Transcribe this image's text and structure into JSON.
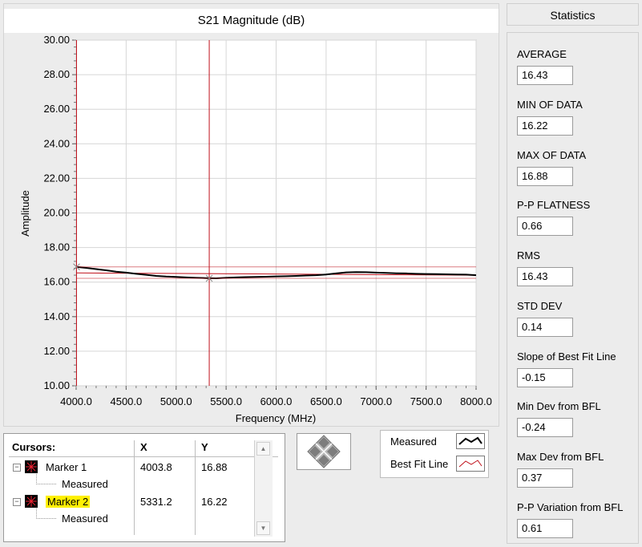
{
  "colors": {
    "measured": "#000000",
    "best_fit": "#c0101a",
    "cursor_line": "#c0101a",
    "grid": "#d6d6d6",
    "highlight": "#fff000"
  },
  "chart_data": {
    "type": "line",
    "title": "S21 Magnitude (dB)",
    "xlabel": "Frequency (MHz)",
    "ylabel": "Amplitude",
    "xlim": [
      4000,
      8000
    ],
    "ylim": [
      10,
      30
    ],
    "x_ticks": [
      "4000.0",
      "4500.0",
      "5000.0",
      "5500.0",
      "6000.0",
      "6500.0",
      "7000.0",
      "7500.0",
      "8000.0"
    ],
    "y_ticks": [
      "10.00",
      "12.00",
      "14.00",
      "16.00",
      "18.00",
      "20.00",
      "22.00",
      "24.00",
      "26.00",
      "28.00",
      "30.00"
    ],
    "x_ticks_values": [
      4000,
      4500,
      5000,
      5500,
      6000,
      6500,
      7000,
      7500,
      8000
    ],
    "y_ticks_values": [
      10,
      12,
      14,
      16,
      18,
      20,
      22,
      24,
      26,
      28,
      30
    ],
    "grid": true,
    "series": [
      {
        "name": "Measured",
        "x": [
          4000,
          4100,
          4200,
          4300,
          4400,
          4500,
          4600,
          4700,
          4800,
          4900,
          5000,
          5100,
          5200,
          5300,
          5400,
          5500,
          5600,
          5700,
          5800,
          5900,
          6000,
          6100,
          6200,
          6300,
          6400,
          6500,
          6600,
          6700,
          6800,
          6900,
          7000,
          7100,
          7200,
          7300,
          7400,
          7500,
          7600,
          7700,
          7800,
          7900,
          8000
        ],
        "y": [
          16.88,
          16.82,
          16.75,
          16.68,
          16.6,
          16.55,
          16.48,
          16.42,
          16.36,
          16.32,
          16.3,
          16.27,
          16.25,
          16.23,
          16.22,
          16.25,
          16.27,
          16.29,
          16.3,
          16.31,
          16.33,
          16.34,
          16.36,
          16.38,
          16.4,
          16.44,
          16.5,
          16.56,
          16.58,
          16.57,
          16.55,
          16.53,
          16.51,
          16.5,
          16.48,
          16.47,
          16.46,
          16.45,
          16.44,
          16.43,
          16.4
        ]
      },
      {
        "name": "Best Fit Line",
        "x": [
          4000,
          8000
        ],
        "y": [
          16.53,
          16.4
        ]
      }
    ],
    "cursors": [
      {
        "name": "Marker 1",
        "x": 4003.8,
        "y": 16.88
      },
      {
        "name": "Marker 2",
        "x": 5331.2,
        "y": 16.22
      }
    ]
  },
  "statistics": {
    "header": "Statistics",
    "items": [
      {
        "label": "AVERAGE",
        "value": "16.43"
      },
      {
        "label": "MIN OF DATA",
        "value": "16.22"
      },
      {
        "label": "MAX OF DATA",
        "value": "16.88"
      },
      {
        "label": "P-P FLATNESS",
        "value": "0.66"
      },
      {
        "label": "RMS",
        "value": "16.43"
      },
      {
        "label": "STD DEV",
        "value": "0.14"
      },
      {
        "label": "Slope of Best Fit Line",
        "value": "-0.15"
      },
      {
        "label": "Min Dev from BFL",
        "value": "-0.24"
      },
      {
        "label": "Max Dev from BFL",
        "value": "0.37"
      },
      {
        "label": "P-P Variation from BFL",
        "value": "0.61"
      }
    ]
  },
  "cursor_table": {
    "headers": {
      "name": "Cursors:",
      "x": "X",
      "y": "Y"
    },
    "rows": [
      {
        "marker": "Marker 1",
        "plot": "Measured",
        "x": "4003.8",
        "y": "16.88",
        "highlighted": false
      },
      {
        "marker": "Marker 2",
        "plot": "Measured",
        "x": "5331.2",
        "y": "16.22",
        "highlighted": true
      }
    ]
  },
  "legend": {
    "items": [
      {
        "label": "Measured"
      },
      {
        "label": "Best Fit Line"
      }
    ]
  }
}
